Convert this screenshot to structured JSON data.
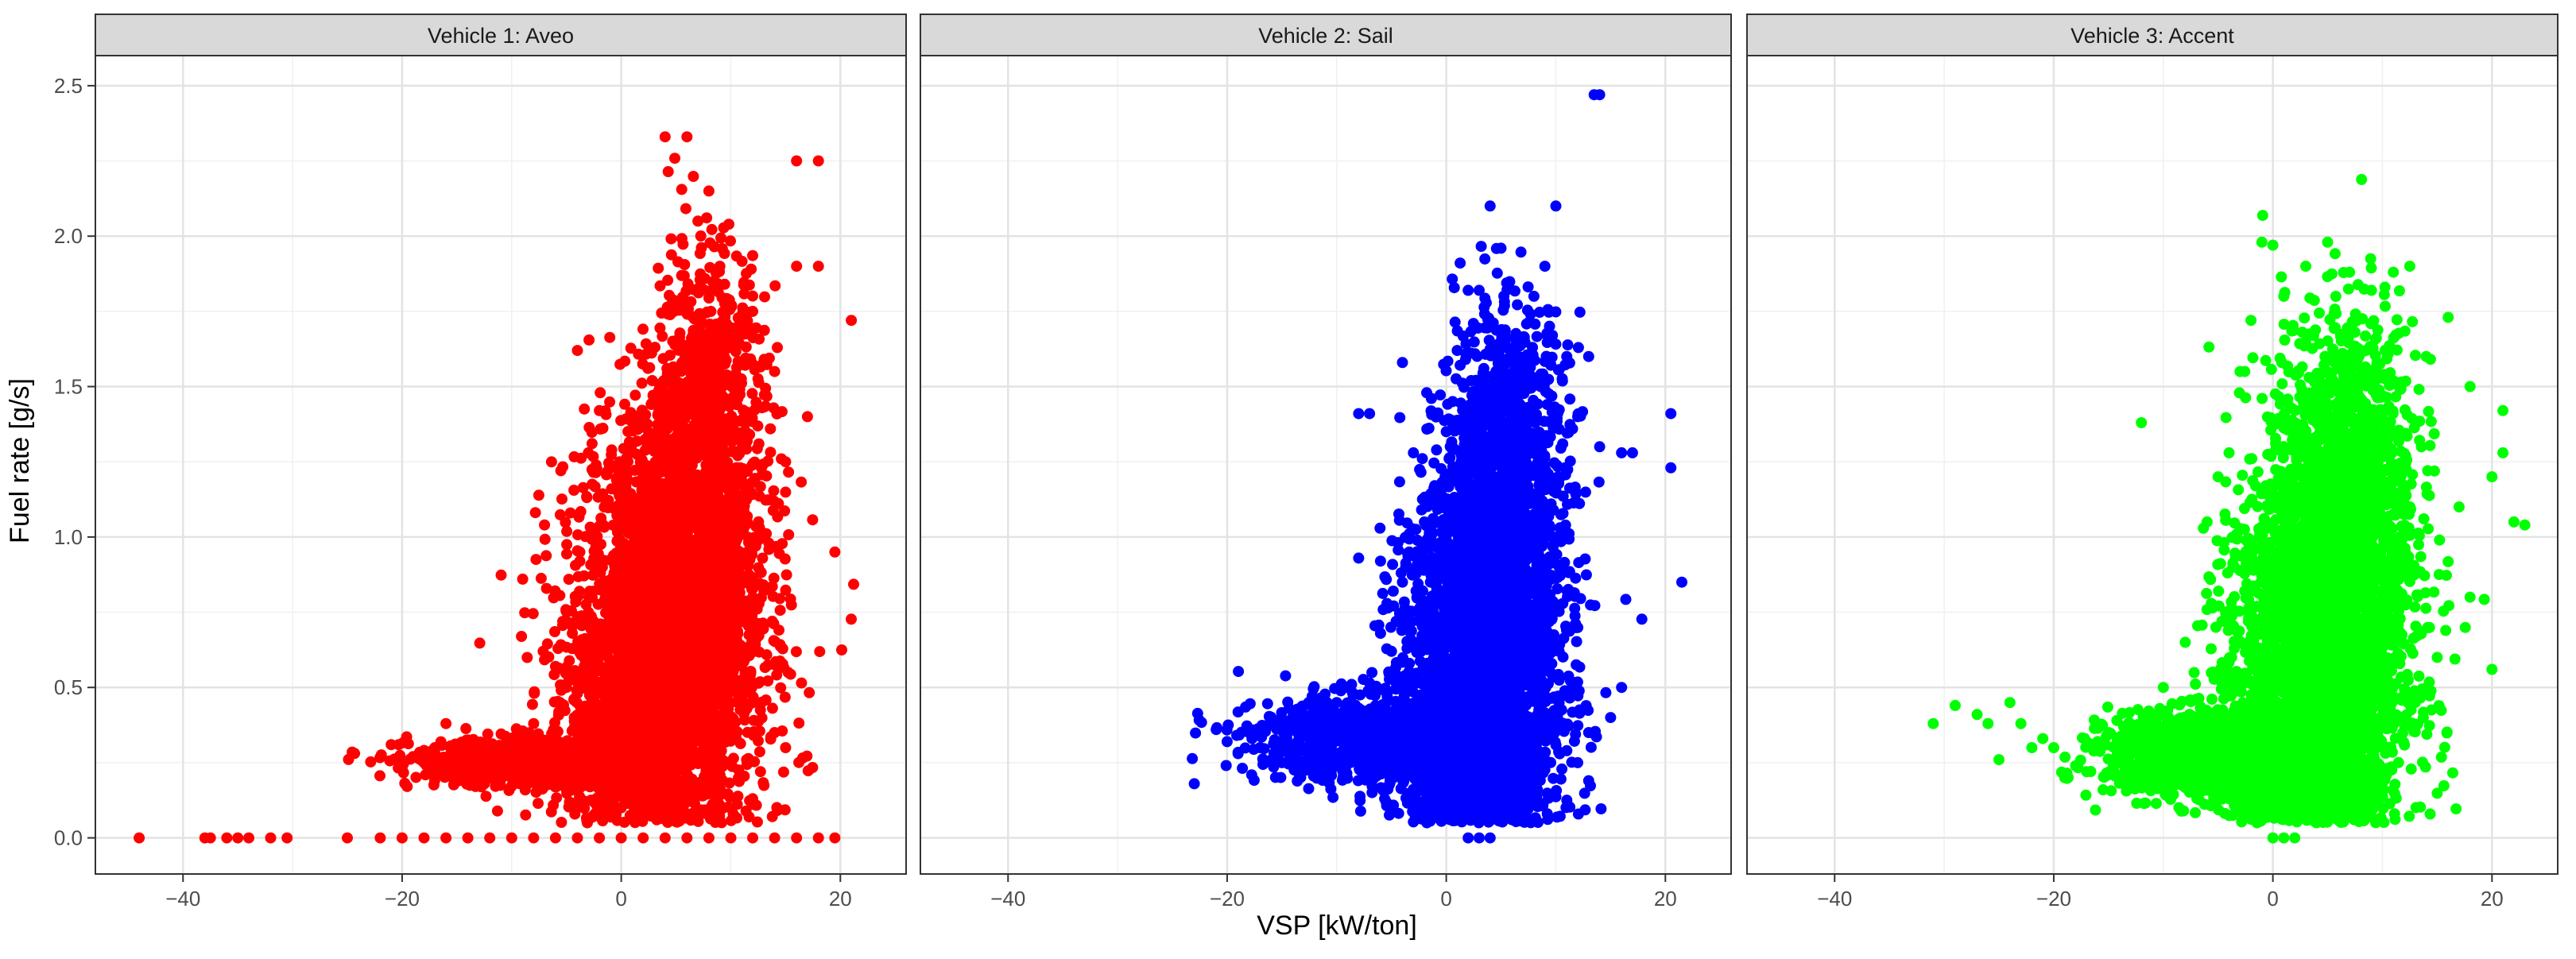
{
  "chart_data": {
    "type": "scatter",
    "xlabel": "VSP [kW/ton]",
    "ylabel": "Fuel rate [g/s]",
    "xlim": [
      -48,
      26
    ],
    "ylim": [
      -0.12,
      2.6
    ],
    "x_ticks": [
      -40,
      -20,
      0,
      20
    ],
    "y_ticks": [
      0.0,
      0.5,
      1.0,
      1.5,
      2.0,
      2.5
    ],
    "y_tick_labels": [
      "0.0",
      "0.5",
      "1.0",
      "1.5",
      "2.0",
      "2.5"
    ],
    "grid": true,
    "legend": "none",
    "panels": [
      {
        "title": "Vehicle 1: Aveo",
        "color": "#ff0000",
        "points": [
          [
            -44,
            0.0
          ],
          [
            -38,
            0.0
          ],
          [
            -37.5,
            0.0
          ],
          [
            -36,
            0.0
          ],
          [
            -35,
            0.0
          ],
          [
            -34,
            0.0
          ],
          [
            -32,
            0.0
          ],
          [
            -30.5,
            0.0
          ],
          [
            -25,
            0.0
          ],
          [
            -22,
            0.0
          ],
          [
            -20,
            0.0
          ],
          [
            -18,
            0.0
          ],
          [
            -16,
            0.0
          ],
          [
            -14,
            0.0
          ],
          [
            -12,
            0.0
          ],
          [
            -10,
            0.0
          ],
          [
            -8,
            0.0
          ],
          [
            -6,
            0.0
          ],
          [
            -4,
            0.0
          ],
          [
            -2,
            0.0
          ],
          [
            0,
            0.0
          ],
          [
            2,
            0.0
          ],
          [
            4,
            0.0
          ],
          [
            6,
            0.0
          ],
          [
            8,
            0.0
          ],
          [
            10,
            0.0
          ],
          [
            12,
            0.0
          ],
          [
            14,
            0.0
          ],
          [
            16,
            0.0
          ],
          [
            18,
            0.0
          ],
          [
            19.5,
            0.0
          ],
          [
            -21,
            0.31
          ],
          [
            -19,
            0.27
          ],
          [
            -18,
            0.25
          ],
          [
            -17,
            0.3
          ],
          [
            -16,
            0.38
          ],
          [
            -15,
            0.26
          ],
          [
            -14,
            0.3
          ],
          [
            -13,
            0.27
          ],
          [
            -12,
            0.31
          ],
          [
            -11,
            0.24
          ],
          [
            -10,
            0.29
          ],
          [
            -9,
            0.33
          ],
          [
            -8,
            0.38
          ],
          [
            -7,
            0.28
          ],
          [
            -6,
            0.57
          ],
          [
            -5,
            0.5
          ],
          [
            -4,
            0.48
          ],
          [
            -9,
            0.86
          ],
          [
            -7,
            1.04
          ],
          [
            -3,
            0.75
          ],
          [
            -2,
            0.62
          ],
          [
            -1,
            0.55
          ],
          [
            0,
            0.4
          ],
          [
            1,
            0.7
          ],
          [
            2,
            1.2
          ],
          [
            3,
            1.3
          ],
          [
            4,
            2.33
          ],
          [
            6,
            2.33
          ],
          [
            7,
            2.05
          ],
          [
            8,
            2.15
          ],
          [
            9,
            1.9
          ],
          [
            12,
            1.75
          ],
          [
            14,
            1.55
          ],
          [
            16,
            2.25
          ],
          [
            18,
            2.25
          ],
          [
            16,
            1.9
          ],
          [
            18,
            1.9
          ],
          [
            21,
            1.72
          ],
          [
            19.5,
            0.95
          ],
          [
            17,
            1.4
          ],
          [
            15,
            1.25
          ],
          [
            13,
            1.0
          ],
          [
            12,
            0.8
          ],
          [
            11,
            0.6
          ],
          [
            10,
            0.45
          ],
          [
            14,
            0.35
          ],
          [
            15,
            0.3
          ],
          [
            -4,
            1.62
          ],
          [
            -2,
            1.42
          ],
          [
            -3,
            1.28
          ],
          [
            0,
            1.1
          ],
          [
            2,
            0.9
          ],
          [
            3,
            0.2
          ],
          [
            1,
            0.15
          ],
          [
            0,
            0.1
          ],
          [
            -1,
            0.08
          ],
          [
            5,
            0.08
          ],
          [
            6,
            1.6
          ]
        ],
        "blobs": [
          {
            "cx": 4,
            "cy": 0.6,
            "sx": 4.5,
            "sy": 0.3,
            "n": 2500
          },
          {
            "cx": 6,
            "cy": 1.0,
            "sx": 3.5,
            "sy": 0.3,
            "n": 1300
          },
          {
            "cx": 8,
            "cy": 1.5,
            "sx": 2.5,
            "sy": 0.25,
            "n": 500
          },
          {
            "cx": -8,
            "cy": 0.25,
            "sx": 5.5,
            "sy": 0.04,
            "n": 800
          },
          {
            "cx": 1,
            "cy": 0.3,
            "sx": 3.0,
            "sy": 0.12,
            "n": 500
          }
        ]
      },
      {
        "title": "Vehicle 2: Sail",
        "color": "#0000ff",
        "points": [
          [
            -23,
            0.18
          ],
          [
            -21,
            0.36
          ],
          [
            -20,
            0.32
          ],
          [
            -19,
            0.28
          ],
          [
            -18,
            0.35
          ],
          [
            -17,
            0.3
          ],
          [
            -16,
            0.38
          ],
          [
            -15,
            0.25
          ],
          [
            -14,
            0.42
          ],
          [
            -13,
            0.3
          ],
          [
            -12,
            0.22
          ],
          [
            -11,
            0.35
          ],
          [
            -10,
            0.45
          ],
          [
            -9,
            0.5
          ],
          [
            -8,
            1.41
          ],
          [
            -7,
            1.41
          ],
          [
            -6,
            0.68
          ],
          [
            -5,
            0.62
          ],
          [
            -4,
            1.58
          ],
          [
            -3,
            1.28
          ],
          [
            -2,
            1.05
          ],
          [
            -1,
            0.9
          ],
          [
            0,
            1.35
          ],
          [
            1,
            1.62
          ],
          [
            2,
            1.82
          ],
          [
            3,
            1.82
          ],
          [
            4,
            2.1
          ],
          [
            5,
            1.96
          ],
          [
            8,
            1.8
          ],
          [
            9,
            1.9
          ],
          [
            10,
            2.1
          ],
          [
            13.5,
            2.47
          ],
          [
            14,
            2.47
          ],
          [
            11,
            1.6
          ],
          [
            12,
            1.4
          ],
          [
            13,
            1.6
          ],
          [
            14,
            1.3
          ],
          [
            16,
            1.28
          ],
          [
            17,
            1.28
          ],
          [
            20.5,
            1.41
          ],
          [
            20.5,
            1.23
          ],
          [
            21.5,
            0.85
          ],
          [
            16,
            0.5
          ],
          [
            15,
            0.4
          ],
          [
            13,
            0.35
          ],
          [
            12,
            0.25
          ],
          [
            13,
            0.19
          ],
          [
            2,
            0.0
          ],
          [
            3,
            0.0
          ],
          [
            4,
            0.0
          ],
          [
            0,
            0.1
          ],
          [
            -6,
            0.92
          ],
          [
            -8,
            0.93
          ],
          [
            -4,
            0.85
          ]
        ],
        "blobs": [
          {
            "cx": 3,
            "cy": 0.55,
            "sx": 3.5,
            "sy": 0.3,
            "n": 2500
          },
          {
            "cx": 5,
            "cy": 1.0,
            "sx": 3.0,
            "sy": 0.3,
            "n": 1200
          },
          {
            "cx": 6,
            "cy": 1.4,
            "sx": 2.5,
            "sy": 0.2,
            "n": 400
          },
          {
            "cx": -6,
            "cy": 0.33,
            "sx": 5.5,
            "sy": 0.07,
            "n": 1200
          },
          {
            "cx": 2,
            "cy": 0.25,
            "sx": 3.5,
            "sy": 0.08,
            "n": 600
          }
        ]
      },
      {
        "title": "Vehicle 3: Accent",
        "color": "#00ff00",
        "points": [
          [
            -31,
            0.38
          ],
          [
            -29,
            0.44
          ],
          [
            -27,
            0.41
          ],
          [
            -26,
            0.38
          ],
          [
            -25,
            0.26
          ],
          [
            -24,
            0.45
          ],
          [
            -23,
            0.38
          ],
          [
            -22,
            0.3
          ],
          [
            -21,
            0.33
          ],
          [
            -20,
            0.3
          ],
          [
            -19,
            0.2
          ],
          [
            -18,
            0.24
          ],
          [
            -17,
            0.22
          ],
          [
            -16,
            0.32
          ],
          [
            -15,
            0.35
          ],
          [
            -14,
            0.28
          ],
          [
            -12,
            1.38
          ],
          [
            -10,
            0.5
          ],
          [
            -8,
            0.65
          ],
          [
            -6,
            1.05
          ],
          [
            -5,
            1.2
          ],
          [
            -4,
            1.28
          ],
          [
            -3,
            1.55
          ],
          [
            -2,
            1.72
          ],
          [
            -1,
            1.98
          ],
          [
            1,
            1.8
          ],
          [
            0,
            1.97
          ],
          [
            3,
            1.9
          ],
          [
            5,
            1.98
          ],
          [
            7,
            1.88
          ],
          [
            9,
            1.82
          ],
          [
            11,
            1.88
          ],
          [
            12.5,
            1.9
          ],
          [
            14,
            1.6
          ],
          [
            16,
            1.73
          ],
          [
            18,
            1.5
          ],
          [
            20,
            1.2
          ],
          [
            21,
            1.42
          ],
          [
            21,
            1.28
          ],
          [
            22,
            1.05
          ],
          [
            23,
            1.04
          ],
          [
            20,
            0.56
          ],
          [
            18,
            0.8
          ],
          [
            15,
            0.6
          ],
          [
            13,
            0.45
          ],
          [
            17,
            1.1
          ],
          [
            0,
            0.0
          ],
          [
            1,
            0.0
          ],
          [
            2,
            0.0
          ],
          [
            -2,
            0.75
          ],
          [
            -4,
            0.55
          ]
        ],
        "blobs": [
          {
            "cx": 4,
            "cy": 0.55,
            "sx": 4.0,
            "sy": 0.3,
            "n": 2500
          },
          {
            "cx": 6,
            "cy": 1.0,
            "sx": 3.5,
            "sy": 0.3,
            "n": 1200
          },
          {
            "cx": 7,
            "cy": 1.4,
            "sx": 3.0,
            "sy": 0.22,
            "n": 400
          },
          {
            "cx": -5,
            "cy": 0.28,
            "sx": 5.0,
            "sy": 0.07,
            "n": 1400
          },
          {
            "cx": 2,
            "cy": 0.22,
            "sx": 3.5,
            "sy": 0.06,
            "n": 700
          }
        ]
      }
    ]
  }
}
